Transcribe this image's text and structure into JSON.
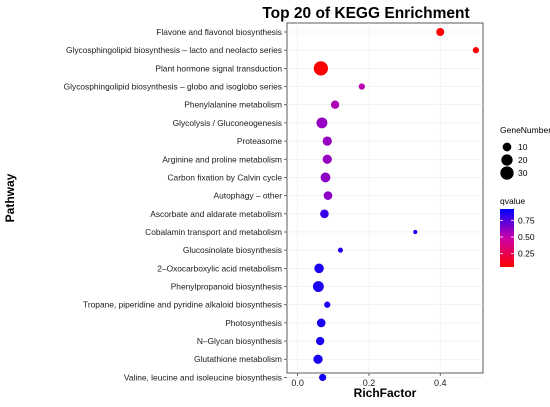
{
  "chart_data": {
    "type": "scatter",
    "title": "Top 20 of KEGG Enrichment",
    "xlabel": "RichFactor",
    "ylabel": "Pathway",
    "xlim": [
      -0.03,
      0.52
    ],
    "x_ticks": [
      "0.0",
      "0.2",
      "0.4"
    ],
    "x_tick_values": [
      0.0,
      0.2,
      0.4
    ],
    "categories": [
      "Flavone and flavonol biosynthesis",
      "Glycosphingolipid biosynthesis – lacto and neolacto series",
      "Plant hormone signal transduction",
      "Glycosphingolipid biosynthesis – globo and isoglobo series",
      "Phenylalanine metabolism",
      "Glycolysis / Gluconeogenesis",
      "Proteasome",
      "Arginine and proline metabolism",
      "Carbon fixation by Calvin cycle",
      "Autophagy – other",
      "Ascorbate and aldarate metabolism",
      "Cobalamin transport and metabolism",
      "Glucosinolate biosynthesis",
      "2–Oxocarboxylic acid metabolism",
      "Phenylpropanoid biosynthesis",
      "Tropane, piperidine and pyridine alkaloid biosynthesis",
      "Photosynthesis",
      "N–Glycan biosynthesis",
      "Glutathione metabolism",
      "Valine, leucine and isoleucine biosynthesis"
    ],
    "points": [
      {
        "pathway": "Flavone and flavonol biosynthesis",
        "rich_factor": 0.4,
        "gene_number": 8,
        "qvalue": 0.05
      },
      {
        "pathway": "Glycosphingolipid biosynthesis – lacto and neolacto series",
        "rich_factor": 0.5,
        "gene_number": 4,
        "qvalue": 0.05
      },
      {
        "pathway": "Plant hormone signal transduction",
        "rich_factor": 0.065,
        "gene_number": 35,
        "qvalue": 0.05
      },
      {
        "pathway": "Glycosphingolipid biosynthesis – globo and isoglobo series",
        "rich_factor": 0.18,
        "gene_number": 4,
        "qvalue": 0.52
      },
      {
        "pathway": "Phenylalanine metabolism",
        "rich_factor": 0.105,
        "gene_number": 9,
        "qvalue": 0.55
      },
      {
        "pathway": "Glycolysis / Gluconeogenesis",
        "rich_factor": 0.068,
        "gene_number": 18,
        "qvalue": 0.6
      },
      {
        "pathway": "Proteasome",
        "rich_factor": 0.083,
        "gene_number": 12,
        "qvalue": 0.6
      },
      {
        "pathway": "Arginine and proline metabolism",
        "rich_factor": 0.083,
        "gene_number": 12,
        "qvalue": 0.6
      },
      {
        "pathway": "Carbon fixation by Calvin cycle",
        "rich_factor": 0.078,
        "gene_number": 14,
        "qvalue": 0.62
      },
      {
        "pathway": "Autophagy – other",
        "rich_factor": 0.085,
        "gene_number": 10,
        "qvalue": 0.63
      },
      {
        "pathway": "Ascorbate and aldarate metabolism",
        "rich_factor": 0.075,
        "gene_number": 10,
        "qvalue": 0.8
      },
      {
        "pathway": "Cobalamin transport and metabolism",
        "rich_factor": 0.33,
        "gene_number": 1,
        "qvalue": 0.85
      },
      {
        "pathway": "Glucosinolate biosynthesis",
        "rich_factor": 0.12,
        "gene_number": 2,
        "qvalue": 0.85
      },
      {
        "pathway": "2–Oxocarboxylic acid metabolism",
        "rich_factor": 0.06,
        "gene_number": 13,
        "qvalue": 0.86
      },
      {
        "pathway": "Phenylpropanoid biosynthesis",
        "rich_factor": 0.058,
        "gene_number": 18,
        "qvalue": 0.86
      },
      {
        "pathway": "Tropane, piperidine and pyridine alkaloid biosynthesis",
        "rich_factor": 0.083,
        "gene_number": 4,
        "qvalue": 0.86
      },
      {
        "pathway": "Photosynthesis",
        "rich_factor": 0.066,
        "gene_number": 10,
        "qvalue": 0.87
      },
      {
        "pathway": "N–Glycan biosynthesis",
        "rich_factor": 0.063,
        "gene_number": 9,
        "qvalue": 0.87
      },
      {
        "pathway": "Glutathione metabolism",
        "rich_factor": 0.057,
        "gene_number": 12,
        "qvalue": 0.87
      },
      {
        "pathway": "Valine, leucine and isoleucine biosynthesis",
        "rich_factor": 0.07,
        "gene_number": 6,
        "qvalue": 0.88
      }
    ],
    "size_legend": {
      "title": "GeneNumber",
      "values": [
        10,
        20,
        30
      ],
      "labels": [
        "10",
        "20",
        "30"
      ]
    },
    "color_legend": {
      "title": "qvalue",
      "range": [
        0.05,
        0.92
      ],
      "ticks": [
        0.75,
        0.5,
        0.25
      ],
      "tick_labels": [
        "0.75",
        "0.50",
        "0.25"
      ],
      "low_color": "#ff0000",
      "high_color": "#0000ff"
    },
    "grid": true,
    "panel_background": "#ffffff",
    "grid_color": "#ebebeb"
  }
}
